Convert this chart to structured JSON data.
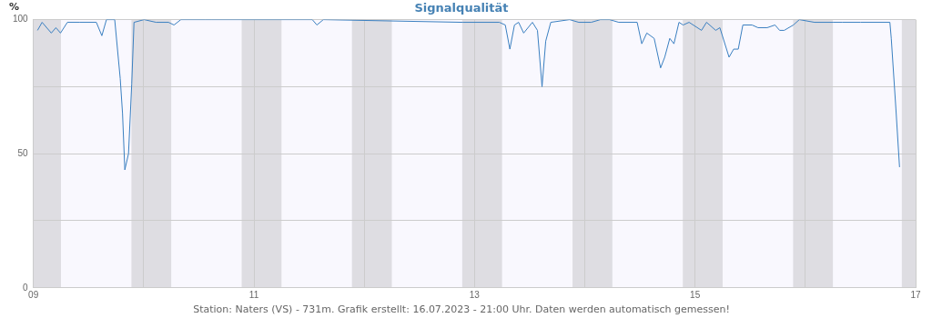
{
  "chart_data": {
    "type": "line",
    "title": "Signalqualität",
    "ylabel": "%",
    "annotations": [
      "Station: Naters (VS) - 731m. Grafik erstellt: 16.07.2023 - 21:00 Uhr. Daten werden automatisch gemessen!"
    ],
    "series": [
      {
        "color": "#3a7fc0",
        "x": [
          "2023-07-09T00:54",
          "2023-07-09T01:54",
          "2023-07-09T03:54",
          "2023-07-09T04:54",
          "2023-07-09T05:54",
          "2023-07-09T07:24",
          "2023-07-09T10:00",
          "2023-07-09T13:42",
          "2023-07-09T14:54",
          "2023-07-09T15:54",
          "2023-07-09T17:42",
          "2023-07-09T18:54",
          "2023-07-09T19:24",
          "2023-07-09T19:54",
          "2023-07-09T20:42",
          "2023-07-09T21:24",
          "2023-07-09T21:54",
          "2023-07-10T00:06",
          "2023-07-10T02:42",
          "2023-07-10T05:24",
          "2023-07-10T06:36",
          "2023-07-10T08:06",
          "2023-07-10T13:24",
          "2023-07-10T14:42",
          "2023-07-11T12:42",
          "2023-07-11T13:42",
          "2023-07-11T15:06",
          "2023-07-12T21:24",
          "2023-07-13T05:24",
          "2023-07-13T06:42",
          "2023-07-13T07:42",
          "2023-07-13T08:42",
          "2023-07-13T09:36",
          "2023-07-13T10:42",
          "2023-07-13T12:36",
          "2023-07-13T13:42",
          "2023-07-13T14:42",
          "2023-07-13T15:30",
          "2023-07-13T16:36",
          "2023-07-13T20:42",
          "2023-07-13T22:42",
          "2023-07-14T01:24",
          "2023-07-14T03:24",
          "2023-07-14T05:24",
          "2023-07-14T07:24",
          "2023-07-14T11:24",
          "2023-07-14T12:24",
          "2023-07-14T13:30",
          "2023-07-14T15:06",
          "2023-07-14T16:30",
          "2023-07-14T17:24",
          "2023-07-14T18:30",
          "2023-07-14T19:24",
          "2023-07-14T20:30",
          "2023-07-14T21:24",
          "2023-07-14T22:42",
          "2023-07-15T01:24",
          "2023-07-15T02:30",
          "2023-07-15T04:30",
          "2023-07-15T05:24",
          "2023-07-15T07:24",
          "2023-07-15T08:24",
          "2023-07-15T09:24",
          "2023-07-15T10:24",
          "2023-07-15T12:24",
          "2023-07-15T13:42",
          "2023-07-15T15:42",
          "2023-07-15T17:24",
          "2023-07-15T18:24",
          "2023-07-15T19:24",
          "2023-07-15T21:24",
          "2023-07-15T22:42",
          "2023-07-16T02:00",
          "2023-07-16T06:00",
          "2023-07-16T08:00",
          "2023-07-16T12:00",
          "2023-07-16T18:24",
          "2023-07-16T18:42",
          "2023-07-16T19:42",
          "2023-07-16T20:30"
        ],
        "values": [
          96,
          99,
          95,
          97,
          95,
          99,
          99,
          99,
          94,
          100,
          100,
          78,
          65,
          44,
          50,
          76,
          99,
          100,
          99,
          99,
          98,
          100,
          100,
          100,
          100,
          98,
          100,
          99,
          99,
          98,
          89,
          98,
          99,
          95,
          99,
          96,
          75,
          92,
          99,
          100,
          99,
          99,
          100,
          100,
          99,
          99,
          91,
          95,
          93,
          82,
          86,
          93,
          91,
          99,
          98,
          99,
          96,
          99,
          96,
          97,
          86,
          89,
          89,
          98,
          98,
          97,
          97,
          98,
          96,
          96,
          98,
          100,
          99,
          99,
          99,
          99,
          99,
          93,
          67,
          45
        ]
      }
    ],
    "xlim": [
      "2023-07-09",
      "2023-07-17"
    ],
    "xticks": [
      {
        "value": "2023-07-09",
        "label": "09"
      },
      {
        "value": "2023-07-10",
        "label": null
      },
      {
        "value": "2023-07-11",
        "label": "11"
      },
      {
        "value": "2023-07-12",
        "label": null
      },
      {
        "value": "2023-07-13",
        "label": "13"
      },
      {
        "value": "2023-07-14",
        "label": null
      },
      {
        "value": "2023-07-15",
        "label": "15"
      },
      {
        "value": "2023-07-16",
        "label": null
      },
      {
        "value": "2023-07-17",
        "label": "17"
      }
    ],
    "ylim": [
      0,
      100
    ],
    "yticks": [
      0,
      {
        "value": 25,
        "label": null
      },
      50,
      {
        "value": 75,
        "label": null
      },
      100
    ],
    "bands": [
      {
        "axis": "x",
        "from": "2023-07-09T00:00",
        "to": "2023-07-09T06:00",
        "color": "#dedde2"
      },
      {
        "axis": "x",
        "from": "2023-07-09T21:20",
        "to": "2023-07-10T06:00",
        "color": "#dedde2"
      },
      {
        "axis": "x",
        "from": "2023-07-10T21:20",
        "to": "2023-07-11T06:00",
        "color": "#dedde2"
      },
      {
        "axis": "x",
        "from": "2023-07-11T21:20",
        "to": "2023-07-12T06:00",
        "color": "#dedde2"
      },
      {
        "axis": "x",
        "from": "2023-07-12T21:20",
        "to": "2023-07-13T06:00",
        "color": "#dedde2"
      },
      {
        "axis": "x",
        "from": "2023-07-13T21:20",
        "to": "2023-07-14T06:00",
        "color": "#dedde2"
      },
      {
        "axis": "x",
        "from": "2023-07-14T21:20",
        "to": "2023-07-15T06:00",
        "color": "#dedde2"
      },
      {
        "axis": "x",
        "from": "2023-07-15T21:20",
        "to": "2023-07-16T06:00",
        "color": "#dedde2"
      },
      {
        "axis": "x",
        "from": "2023-07-16T21:00",
        "to": "2023-07-17T00:00",
        "color": "#dedde2"
      }
    ],
    "grid": true,
    "legend": false,
    "marker": "none",
    "line_style": "solid"
  }
}
